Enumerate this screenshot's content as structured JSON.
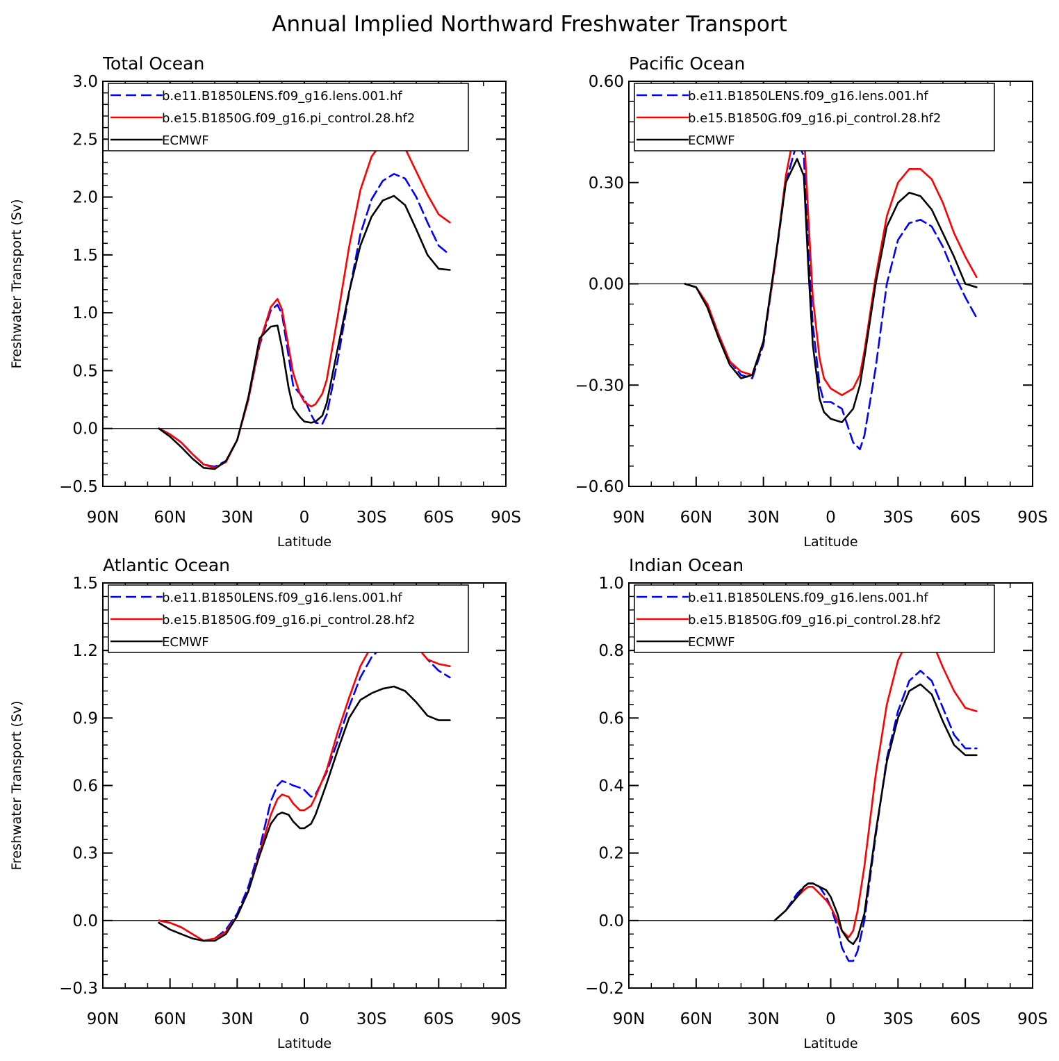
{
  "figure_title": "Annual Implied Northward Freshwater Transport",
  "colors": {
    "lens": "#0000ff",
    "pi_control": "#ff0000",
    "ecmwf": "#000000"
  },
  "legend_labels": [
    "b.e11.B1850LENS.f09_g16.lens.001.hf",
    "b.e15.B1850G.f09_g16.pi_control.28.hf2",
    "ECMWF"
  ],
  "chart_data": [
    {
      "type": "line",
      "title": "Total Ocean",
      "xlabel": "Latitude",
      "ylabel": "Freshwater Transport (Sv)",
      "xlim": [
        -90,
        90
      ],
      "ylim": [
        -0.5,
        3.0
      ],
      "x_ticks": [
        -90,
        -60,
        -30,
        0,
        30,
        60,
        90
      ],
      "x_tick_labels": [
        "90N",
        "60N",
        "30N",
        "0",
        "30S",
        "60S",
        "90S"
      ],
      "y_ticks": [
        -0.5,
        0.0,
        0.5,
        1.0,
        1.5,
        2.0,
        2.5,
        3.0
      ],
      "y_tick_labels": [
        "-0.5",
        "0.0",
        "0.5",
        "1.0",
        "1.5",
        "2.0",
        "2.5",
        "3.0"
      ],
      "zero_line": true,
      "legend_position": "top",
      "series": [
        {
          "name": "b.e11.B1850LENS.f09_g16.lens.001.hf",
          "style": "dashed",
          "color": "#0000ff",
          "x": [
            -65,
            -60,
            -55,
            -50,
            -45,
            -40,
            -35,
            -30,
            -25,
            -20,
            -15,
            -12,
            -10,
            -7,
            -5,
            -2,
            0,
            3,
            5,
            8,
            10,
            15,
            20,
            25,
            30,
            35,
            40,
            45,
            50,
            55,
            60,
            65
          ],
          "y": [
            0.0,
            -0.05,
            -0.12,
            -0.22,
            -0.31,
            -0.33,
            -0.28,
            -0.1,
            0.25,
            0.72,
            1.02,
            1.07,
            0.99,
            0.62,
            0.37,
            0.3,
            0.26,
            0.12,
            0.05,
            0.04,
            0.12,
            0.6,
            1.17,
            1.68,
            1.98,
            2.14,
            2.2,
            2.16,
            2.0,
            1.78,
            1.58,
            1.5
          ]
        },
        {
          "name": "b.e15.B1850G.f09_g16.pi_control.28.hf2",
          "style": "solid",
          "color": "#ff0000",
          "x": [
            -65,
            -60,
            -55,
            -50,
            -45,
            -40,
            -35,
            -30,
            -25,
            -20,
            -15,
            -12,
            -10,
            -7,
            -5,
            -2,
            0,
            3,
            5,
            8,
            10,
            15,
            20,
            25,
            30,
            35,
            40,
            45,
            50,
            55,
            60,
            65
          ],
          "y": [
            0.0,
            -0.05,
            -0.12,
            -0.22,
            -0.31,
            -0.34,
            -0.29,
            -0.1,
            0.25,
            0.74,
            1.05,
            1.12,
            1.03,
            0.7,
            0.48,
            0.3,
            0.23,
            0.19,
            0.21,
            0.3,
            0.42,
            0.98,
            1.57,
            2.06,
            2.35,
            2.48,
            2.51,
            2.42,
            2.22,
            2.02,
            1.85,
            1.78
          ]
        },
        {
          "name": "ECMWF",
          "style": "solid",
          "color": "#000000",
          "x": [
            -65,
            -60,
            -55,
            -50,
            -45,
            -40,
            -35,
            -30,
            -25,
            -20,
            -15,
            -12,
            -10,
            -7,
            -5,
            -2,
            0,
            3,
            5,
            8,
            10,
            15,
            20,
            25,
            30,
            35,
            40,
            45,
            50,
            55,
            60,
            65
          ],
          "y": [
            0.0,
            -0.07,
            -0.16,
            -0.26,
            -0.34,
            -0.35,
            -0.28,
            -0.1,
            0.27,
            0.78,
            0.88,
            0.89,
            0.7,
            0.35,
            0.18,
            0.1,
            0.06,
            0.05,
            0.06,
            0.11,
            0.22,
            0.7,
            1.18,
            1.58,
            1.83,
            1.97,
            2.01,
            1.93,
            1.72,
            1.5,
            1.38,
            1.37
          ]
        }
      ]
    },
    {
      "type": "line",
      "title": "Pacific Ocean",
      "xlabel": "Latitude",
      "ylabel": "",
      "xlim": [
        -90,
        90
      ],
      "ylim": [
        -0.6,
        0.6
      ],
      "x_ticks": [
        -90,
        -60,
        -30,
        0,
        30,
        60,
        90
      ],
      "x_tick_labels": [
        "90N",
        "60N",
        "30N",
        "0",
        "30S",
        "60S",
        "90S"
      ],
      "y_ticks": [
        -0.6,
        -0.3,
        0.0,
        0.3,
        0.6
      ],
      "y_tick_labels": [
        "-0.60",
        "-0.30",
        "0.00",
        "0.30",
        "0.60"
      ],
      "zero_line": true,
      "legend_position": "top",
      "series": [
        {
          "name": "b.e11.B1850LENS.f09_g16.lens.001.hf",
          "style": "dashed",
          "color": "#0000ff",
          "x": [
            -65,
            -60,
            -55,
            -50,
            -45,
            -40,
            -35,
            -30,
            -25,
            -20,
            -15,
            -12,
            -10,
            -8,
            -5,
            -3,
            0,
            5,
            10,
            13,
            15,
            20,
            25,
            30,
            35,
            40,
            45,
            50,
            55,
            60,
            65
          ],
          "y": [
            0.0,
            -0.01,
            -0.06,
            -0.15,
            -0.23,
            -0.27,
            -0.28,
            -0.18,
            0.05,
            0.3,
            0.42,
            0.38,
            0.1,
            -0.12,
            -0.3,
            -0.35,
            -0.35,
            -0.37,
            -0.47,
            -0.49,
            -0.45,
            -0.25,
            0.0,
            0.13,
            0.18,
            0.19,
            0.17,
            0.11,
            0.03,
            -0.04,
            -0.1
          ]
        },
        {
          "name": "b.e15.B1850G.f09_g16.pi_control.28.hf2",
          "style": "solid",
          "color": "#ff0000",
          "x": [
            -65,
            -60,
            -55,
            -50,
            -45,
            -40,
            -35,
            -30,
            -25,
            -20,
            -15,
            -12,
            -10,
            -8,
            -5,
            -3,
            0,
            5,
            10,
            13,
            15,
            20,
            25,
            30,
            35,
            40,
            45,
            50,
            55,
            60,
            65
          ],
          "y": [
            0.0,
            -0.01,
            -0.06,
            -0.15,
            -0.23,
            -0.26,
            -0.27,
            -0.17,
            0.05,
            0.32,
            0.49,
            0.46,
            0.2,
            -0.04,
            -0.22,
            -0.28,
            -0.31,
            -0.33,
            -0.31,
            -0.27,
            -0.2,
            0.02,
            0.2,
            0.3,
            0.34,
            0.34,
            0.31,
            0.24,
            0.15,
            0.08,
            0.02
          ]
        },
        {
          "name": "ECMWF",
          "style": "solid",
          "color": "#000000",
          "x": [
            -65,
            -60,
            -55,
            -50,
            -45,
            -40,
            -35,
            -30,
            -25,
            -20,
            -15,
            -12,
            -10,
            -8,
            -5,
            -3,
            0,
            5,
            10,
            13,
            15,
            20,
            25,
            30,
            35,
            40,
            45,
            50,
            55,
            60,
            65
          ],
          "y": [
            0.0,
            -0.01,
            -0.07,
            -0.16,
            -0.24,
            -0.28,
            -0.27,
            -0.17,
            0.06,
            0.3,
            0.37,
            0.32,
            0.05,
            -0.18,
            -0.34,
            -0.38,
            -0.4,
            -0.41,
            -0.37,
            -0.3,
            -0.22,
            0.0,
            0.17,
            0.24,
            0.27,
            0.26,
            0.22,
            0.15,
            0.08,
            0.0,
            -0.01
          ]
        }
      ]
    },
    {
      "type": "line",
      "title": "Atlantic Ocean",
      "xlabel": "Latitude",
      "ylabel": "Freshwater Transport (Sv)",
      "xlim": [
        -90,
        90
      ],
      "ylim": [
        -0.3,
        1.5
      ],
      "x_ticks": [
        -90,
        -60,
        -30,
        0,
        30,
        60,
        90
      ],
      "x_tick_labels": [
        "90N",
        "60N",
        "30N",
        "0",
        "30S",
        "60S",
        "90S"
      ],
      "y_ticks": [
        -0.3,
        0.0,
        0.3,
        0.6,
        0.9,
        1.2,
        1.5
      ],
      "y_tick_labels": [
        "-0.3",
        "0.0",
        "0.3",
        "0.6",
        "0.9",
        "1.2",
        "1.5"
      ],
      "zero_line": true,
      "legend_position": "top",
      "series": [
        {
          "name": "b.e11.B1850LENS.f09_g16.lens.001.hf",
          "style": "dashed",
          "color": "#0000ff",
          "x": [
            -65,
            -60,
            -55,
            -50,
            -45,
            -40,
            -35,
            -30,
            -25,
            -20,
            -15,
            -12,
            -10,
            -7,
            -5,
            -2,
            0,
            3,
            5,
            10,
            15,
            20,
            25,
            30,
            35,
            40,
            45,
            50,
            55,
            60,
            65
          ],
          "y": [
            0.0,
            -0.01,
            -0.03,
            -0.06,
            -0.09,
            -0.08,
            -0.04,
            0.03,
            0.15,
            0.32,
            0.53,
            0.6,
            0.62,
            0.61,
            0.6,
            0.59,
            0.58,
            0.55,
            0.56,
            0.66,
            0.8,
            0.95,
            1.08,
            1.17,
            1.22,
            1.26,
            1.26,
            1.22,
            1.16,
            1.11,
            1.08
          ]
        },
        {
          "name": "b.e15.B1850G.f09_g16.pi_control.28.hf2",
          "style": "solid",
          "color": "#ff0000",
          "x": [
            -65,
            -60,
            -55,
            -50,
            -45,
            -40,
            -35,
            -30,
            -25,
            -20,
            -15,
            -12,
            -10,
            -7,
            -5,
            -2,
            0,
            3,
            5,
            10,
            15,
            20,
            25,
            30,
            35,
            40,
            45,
            50,
            55,
            60,
            65
          ],
          "y": [
            0.0,
            -0.01,
            -0.03,
            -0.06,
            -0.09,
            -0.08,
            -0.05,
            0.02,
            0.13,
            0.3,
            0.47,
            0.54,
            0.56,
            0.55,
            0.52,
            0.49,
            0.49,
            0.51,
            0.55,
            0.67,
            0.84,
            0.99,
            1.13,
            1.22,
            1.28,
            1.31,
            1.29,
            1.22,
            1.16,
            1.14,
            1.13
          ]
        },
        {
          "name": "ECMWF",
          "style": "solid",
          "color": "#000000",
          "x": [
            -65,
            -60,
            -55,
            -50,
            -45,
            -40,
            -35,
            -30,
            -25,
            -20,
            -15,
            -12,
            -10,
            -7,
            -5,
            -2,
            0,
            3,
            5,
            10,
            15,
            20,
            25,
            30,
            35,
            40,
            45,
            50,
            55,
            60,
            65
          ],
          "y": [
            -0.01,
            -0.04,
            -0.06,
            -0.08,
            -0.09,
            -0.09,
            -0.06,
            0.02,
            0.13,
            0.29,
            0.43,
            0.47,
            0.48,
            0.47,
            0.44,
            0.41,
            0.41,
            0.43,
            0.47,
            0.61,
            0.76,
            0.9,
            0.98,
            1.01,
            1.03,
            1.04,
            1.02,
            0.97,
            0.91,
            0.89,
            0.89
          ]
        }
      ]
    },
    {
      "type": "line",
      "title": "Indian Ocean",
      "xlabel": "Latitude",
      "ylabel": "",
      "xlim": [
        -90,
        90
      ],
      "ylim": [
        -0.2,
        1.0
      ],
      "x_ticks": [
        -90,
        -60,
        -30,
        0,
        30,
        60,
        90
      ],
      "x_tick_labels": [
        "90N",
        "60N",
        "30N",
        "0",
        "30S",
        "60S",
        "90S"
      ],
      "y_ticks": [
        -0.2,
        0.0,
        0.2,
        0.4,
        0.6,
        0.8,
        1.0
      ],
      "y_tick_labels": [
        "-0.2",
        "0.0",
        "0.2",
        "0.4",
        "0.6",
        "0.8",
        "1.0"
      ],
      "zero_line": true,
      "legend_position": "top",
      "series": [
        {
          "name": "b.e11.B1850LENS.f09_g16.lens.001.hf",
          "style": "dashed",
          "color": "#0000ff",
          "x": [
            -25,
            -20,
            -15,
            -12,
            -10,
            -8,
            -5,
            -2,
            0,
            3,
            5,
            8,
            10,
            12,
            15,
            20,
            25,
            30,
            35,
            40,
            45,
            50,
            55,
            60,
            65
          ],
          "y": [
            0.0,
            0.03,
            0.08,
            0.1,
            0.11,
            0.11,
            0.1,
            0.07,
            0.04,
            -0.02,
            -0.08,
            -0.12,
            -0.12,
            -0.09,
            0.0,
            0.25,
            0.48,
            0.62,
            0.71,
            0.74,
            0.71,
            0.63,
            0.55,
            0.51,
            0.51
          ]
        },
        {
          "name": "b.e15.B1850G.f09_g16.pi_control.28.hf2",
          "style": "solid",
          "color": "#ff0000",
          "x": [
            -25,
            -20,
            -15,
            -12,
            -10,
            -8,
            -5,
            -2,
            0,
            3,
            5,
            8,
            10,
            12,
            15,
            20,
            25,
            30,
            35,
            40,
            45,
            50,
            55,
            60,
            65
          ],
          "y": [
            0.0,
            0.03,
            0.07,
            0.09,
            0.1,
            0.1,
            0.08,
            0.06,
            0.04,
            0.0,
            -0.03,
            -0.05,
            -0.03,
            0.03,
            0.16,
            0.43,
            0.64,
            0.77,
            0.84,
            0.86,
            0.83,
            0.75,
            0.68,
            0.63,
            0.62
          ]
        },
        {
          "name": "ECMWF",
          "style": "solid",
          "color": "#000000",
          "x": [
            -25,
            -20,
            -15,
            -12,
            -10,
            -8,
            -5,
            -2,
            0,
            3,
            5,
            8,
            10,
            12,
            15,
            20,
            25,
            30,
            35,
            40,
            45,
            50,
            55,
            60,
            65
          ],
          "y": [
            0.0,
            0.03,
            0.07,
            0.1,
            0.11,
            0.11,
            0.1,
            0.09,
            0.07,
            0.02,
            -0.03,
            -0.06,
            -0.07,
            -0.05,
            0.02,
            0.26,
            0.47,
            0.6,
            0.68,
            0.7,
            0.67,
            0.59,
            0.52,
            0.49,
            0.49
          ]
        }
      ]
    }
  ]
}
